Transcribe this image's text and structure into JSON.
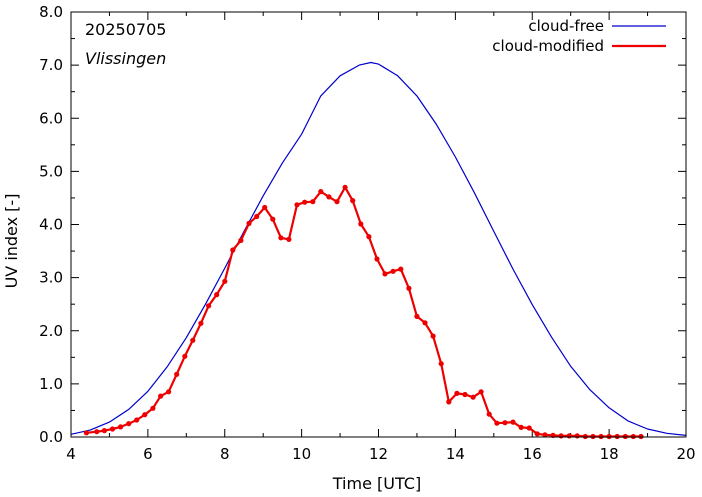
{
  "chart_data": {
    "type": "line",
    "title": "",
    "xlabel": "Time  [UTC]",
    "ylabel": "UV index  [-]",
    "xlim": [
      4,
      20
    ],
    "ylim": [
      0,
      8
    ],
    "x_ticks": [
      4,
      6,
      8,
      10,
      12,
      14,
      16,
      18,
      20
    ],
    "x_tick_labels": [
      "4",
      "6",
      "8",
      "10",
      "12",
      "14",
      "16",
      "18",
      "20"
    ],
    "y_ticks": [
      0,
      1,
      2,
      3,
      4,
      5,
      6,
      7,
      8
    ],
    "y_tick_labels": [
      "0.0",
      "1.0",
      "2.0",
      "3.0",
      "4.0",
      "5.0",
      "6.0",
      "7.0",
      "8.0"
    ],
    "grid": false,
    "legend_position": "top-right",
    "annotations": {
      "date": "20250705",
      "location": "Vlissingen"
    },
    "series": [
      {
        "name": "cloud-free",
        "color": "#0000cc",
        "markers": false,
        "x": [
          4.0,
          4.5,
          5.0,
          5.5,
          6.0,
          6.5,
          7.0,
          7.5,
          8.0,
          8.5,
          9.0,
          9.5,
          10.0,
          10.5,
          11.0,
          11.5,
          11.8,
          12.0,
          12.5,
          13.0,
          13.5,
          14.0,
          14.5,
          15.0,
          15.5,
          16.0,
          16.5,
          17.0,
          17.5,
          18.0,
          18.5,
          19.0,
          19.5,
          20.0
        ],
        "y": [
          0.05,
          0.13,
          0.28,
          0.52,
          0.86,
          1.32,
          1.87,
          2.5,
          3.18,
          3.87,
          4.54,
          5.16,
          5.7,
          6.42,
          6.8,
          7.0,
          7.05,
          7.02,
          6.8,
          6.42,
          5.89,
          5.27,
          4.59,
          3.87,
          3.16,
          2.49,
          1.88,
          1.33,
          0.89,
          0.55,
          0.3,
          0.15,
          0.07,
          0.03
        ]
      },
      {
        "name": "cloud-modified",
        "color": "#ee0000",
        "markers": true,
        "x": [
          4.4,
          4.67,
          4.87,
          5.08,
          5.29,
          5.5,
          5.71,
          5.92,
          6.13,
          6.33,
          6.54,
          6.75,
          6.96,
          7.17,
          7.38,
          7.58,
          7.79,
          8.0,
          8.21,
          8.42,
          8.63,
          8.83,
          9.04,
          9.25,
          9.46,
          9.67,
          9.88,
          10.08,
          10.29,
          10.5,
          10.71,
          10.92,
          11.13,
          11.33,
          11.54,
          11.75,
          11.96,
          12.17,
          12.38,
          12.58,
          12.79,
          13.0,
          13.21,
          13.42,
          13.63,
          13.83,
          14.04,
          14.25,
          14.46,
          14.67,
          14.88,
          15.08,
          15.29,
          15.5,
          15.71,
          15.92,
          16.13,
          16.33,
          16.54,
          16.75,
          16.96,
          17.17,
          17.38,
          17.58,
          17.79,
          18.0,
          18.21,
          18.42,
          18.63,
          18.83
        ],
        "y": [
          0.08,
          0.1,
          0.12,
          0.15,
          0.19,
          0.25,
          0.32,
          0.42,
          0.54,
          0.77,
          0.85,
          1.18,
          1.52,
          1.82,
          2.14,
          2.47,
          2.68,
          2.93,
          3.52,
          3.7,
          4.02,
          4.15,
          4.32,
          4.1,
          3.75,
          3.72,
          4.37,
          4.42,
          4.43,
          4.62,
          4.52,
          4.43,
          4.7,
          4.45,
          4.01,
          3.77,
          3.35,
          3.07,
          3.12,
          3.16,
          2.8,
          2.27,
          2.15,
          1.9,
          1.38,
          0.66,
          0.82,
          0.8,
          0.75,
          0.85,
          0.43,
          0.26,
          0.27,
          0.28,
          0.18,
          0.17,
          0.06,
          0.04,
          0.03,
          0.02,
          0.02,
          0.02,
          0.01,
          0.01,
          0.01,
          0.01,
          0.01,
          0.01,
          0.01,
          0.01
        ]
      }
    ]
  }
}
